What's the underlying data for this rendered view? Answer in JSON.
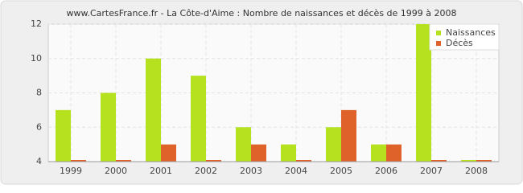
{
  "chart_data": {
    "type": "bar",
    "title": "www.CartesFrance.fr - La Côte-d'Aime : Nombre de naissances et décès de 1999 à 2008",
    "categories": [
      "1999",
      "2000",
      "2001",
      "2002",
      "2003",
      "2004",
      "2005",
      "2006",
      "2007",
      "2008"
    ],
    "series": [
      {
        "name": "Naissances",
        "color": "#b5e11f",
        "values": [
          7,
          8,
          10,
          9,
          6,
          5,
          6,
          5,
          12,
          4
        ]
      },
      {
        "name": "Décès",
        "color": "#e0622b",
        "values": [
          4,
          4,
          5,
          4,
          5,
          4,
          7,
          5,
          4,
          4
        ]
      }
    ],
    "ylim": [
      4,
      12
    ],
    "yticks": [
      4,
      6,
      8,
      10,
      12
    ],
    "grid": true,
    "legend": "top-right"
  }
}
